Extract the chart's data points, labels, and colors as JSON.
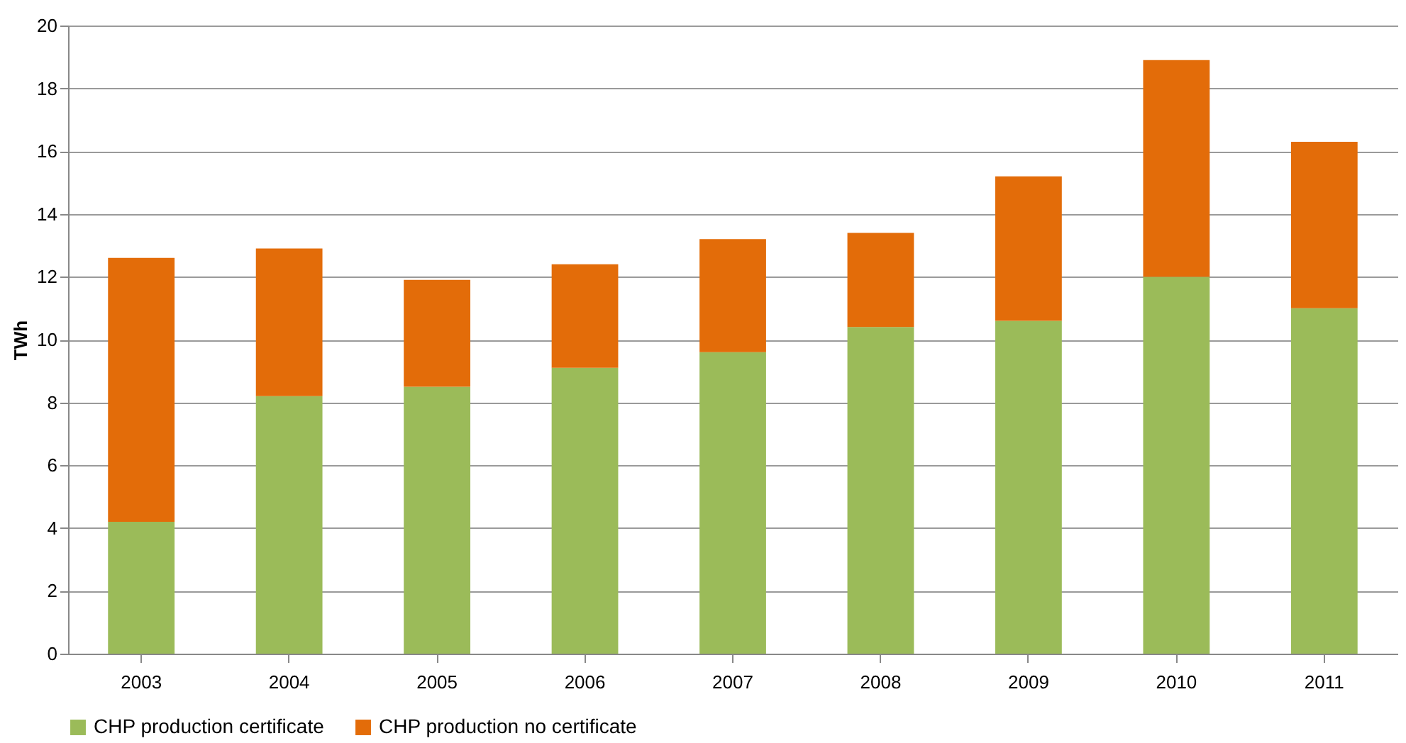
{
  "chart_data": {
    "type": "bar",
    "stacked": true,
    "ylabel": "TWh",
    "categories": [
      "2003",
      "2004",
      "2005",
      "2006",
      "2007",
      "2008",
      "2009",
      "2010",
      "2011"
    ],
    "series": [
      {
        "name": "CHP production certificate",
        "color": "#9bbb59",
        "values": [
          4.2,
          8.2,
          8.5,
          9.1,
          9.6,
          10.4,
          10.6,
          12.0,
          11.0
        ]
      },
      {
        "name": "CHP production no certificate",
        "color": "#e36c09",
        "values": [
          8.4,
          4.7,
          3.4,
          3.3,
          3.6,
          3.0,
          4.6,
          6.9,
          5.3
        ]
      }
    ],
    "ylim": [
      0,
      20
    ],
    "yticks": [
      0,
      2,
      4,
      6,
      8,
      10,
      12,
      14,
      16,
      18,
      20
    ],
    "grid": "y",
    "legend": "bottom"
  }
}
